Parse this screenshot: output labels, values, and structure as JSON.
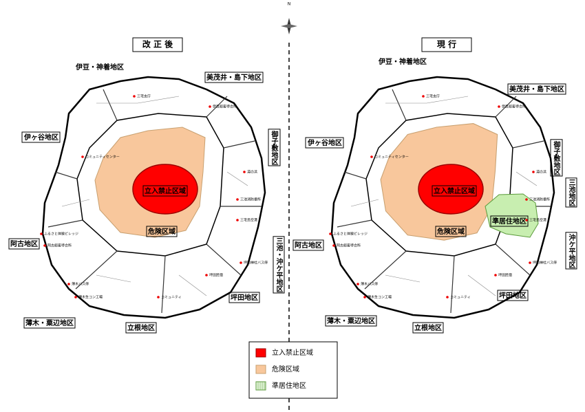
{
  "compass": "N",
  "maps": [
    {
      "heading": "改 正 後",
      "regions": [
        "伊豆・神着地区",
        "美茂井・島下地区",
        "御子敷地区",
        "伊ヶ谷地区",
        "三池・沖ケ平地区",
        "阿古地区",
        "坪田地区",
        "薄木・粟辺地区",
        "立根地区"
      ],
      "zones": [
        "立入禁止区域",
        "危険区域"
      ]
    },
    {
      "heading": "現 行",
      "regions": [
        "伊豆・神着地区",
        "美茂井・島下地区",
        "御子敷地区",
        "伊ヶ谷地区",
        "三池地区",
        "沖ケ平地区",
        "阿古地区",
        "坪田地区",
        "薄木・粟辺地区",
        "立根地区"
      ],
      "zones": [
        "立入禁止区域",
        "危険区域",
        "準居住地区"
      ]
    }
  ],
  "places": [
    "三宅支庁",
    "伊豆船客待合所",
    "コミュニティセンター",
    "湯の浜",
    "三池消防番所",
    "三宅島空港",
    "ふるさと体験ビレッジ",
    "阿古船客待合所",
    "薄木バス停",
    "薄木生コン工場",
    "坪田神社バス停",
    "坪田民宿",
    "コミュニティ"
  ],
  "legend": [
    "立入禁止区域",
    "危険区域",
    "準居住地区"
  ]
}
